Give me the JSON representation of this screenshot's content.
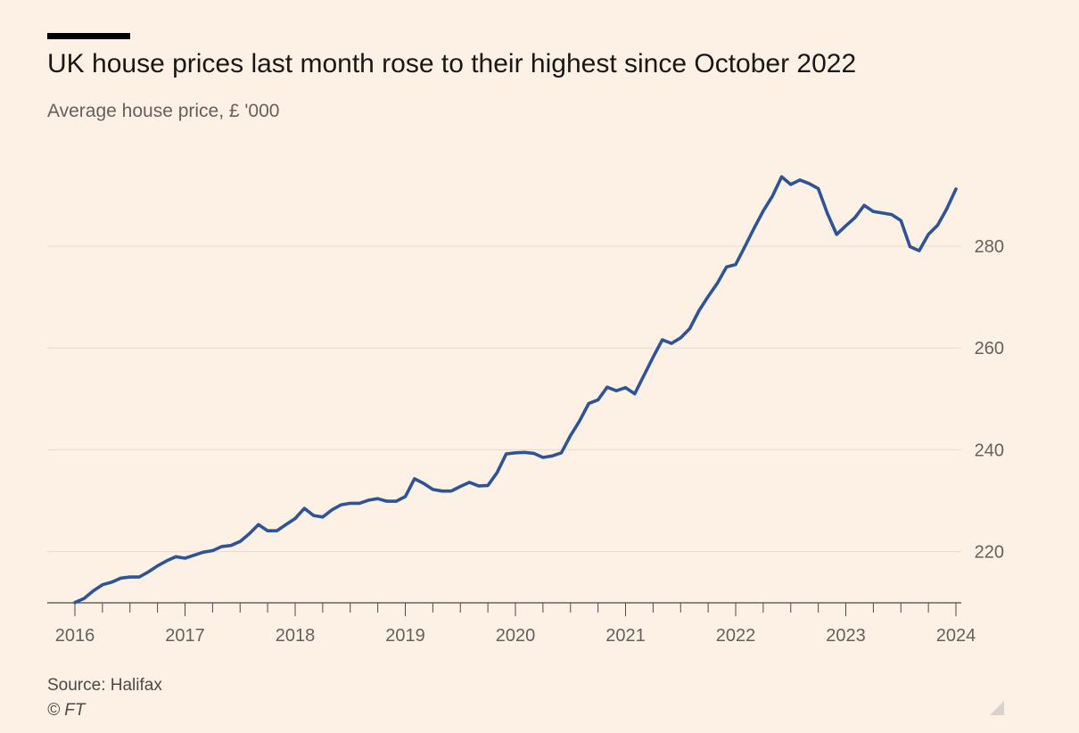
{
  "header": {
    "title": "UK house prices last month rose to their highest since October 2022",
    "subtitle": "Average house price, £ '000"
  },
  "footer": {
    "source": "Source: Halifax",
    "credit": "© FT"
  },
  "colors": {
    "background": "#FDF1E6",
    "line": "#2E5396",
    "grid": "#E6D9CE",
    "tick_text": "#66605C"
  },
  "icons": [
    "resize-handle-icon"
  ],
  "chart_data": {
    "type": "line",
    "title": "UK house prices last month rose to their highest since October 2022",
    "subtitle": "Average house price, £ '000",
    "xlabel": "",
    "ylabel": "",
    "x_start": "2016-01",
    "x_end": "2024-01",
    "frequency": "monthly",
    "xlim": [
      2016,
      2024
    ],
    "ylim": [
      210,
      293
    ],
    "y_axis_side": "right",
    "x_ticks": [
      "2016",
      "2017",
      "2018",
      "2019",
      "2020",
      "2021",
      "2022",
      "2023",
      "2024"
    ],
    "y_ticks": [
      220,
      240,
      260,
      280
    ],
    "grid": "horizontal",
    "legend": "none",
    "series": [
      {
        "values": [
          210.0,
          210.8,
          212.3,
          213.5,
          214.0,
          214.8,
          215.0,
          215.0,
          216.0,
          217.2,
          218.2,
          219.0,
          218.7,
          219.3,
          219.9,
          220.2,
          221.0,
          221.2,
          222.0,
          223.5,
          225.3,
          224.1,
          224.1,
          225.3,
          226.5,
          228.5,
          227.1,
          226.8,
          228.2,
          229.2,
          229.5,
          229.5,
          230.1,
          230.4,
          229.9,
          229.9,
          230.8,
          234.3,
          233.4,
          232.2,
          231.9,
          231.9,
          232.8,
          233.6,
          232.9,
          233.0,
          235.5,
          239.2,
          239.4,
          239.5,
          239.3,
          238.5,
          238.8,
          239.4,
          242.8,
          245.7,
          249.1,
          249.8,
          252.3,
          251.6,
          252.2,
          251.0,
          254.6,
          258.2,
          261.6,
          260.9,
          262.0,
          263.8,
          267.3,
          270.1,
          272.7,
          275.9,
          276.4,
          279.9,
          283.5,
          286.9,
          289.8,
          293.6,
          292.1,
          293.0,
          292.3,
          291.3,
          286.4,
          282.3,
          284.0,
          285.6,
          288.0,
          286.8,
          286.5,
          286.2,
          285.0,
          279.9,
          279.1,
          282.3,
          284.1,
          287.3,
          291.2
        ]
      }
    ]
  }
}
